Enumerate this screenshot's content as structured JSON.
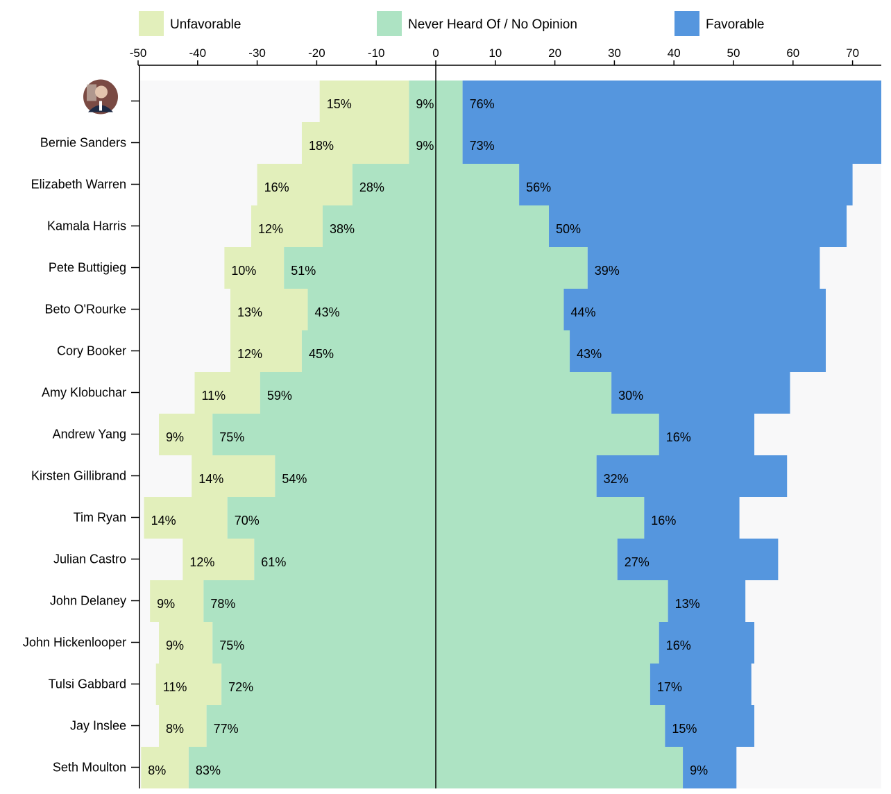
{
  "colors": {
    "unfavorable": "#e2efbb",
    "neutral": "#ade3c3",
    "favorable": "#5596de",
    "panel": "#f8f8f9"
  },
  "legend": [
    {
      "label": "Unfavorable",
      "key": "unfavorable"
    },
    {
      "label": "Never Heard Of / No Opinion",
      "key": "neutral"
    },
    {
      "label": "Favorable",
      "key": "favorable"
    }
  ],
  "chart_data": {
    "type": "bar",
    "orientation": "horizontal-diverging-stacked",
    "x_ticks": [
      -50,
      -40,
      -30,
      -20,
      -10,
      0,
      10,
      20,
      30,
      40,
      50,
      60,
      70
    ],
    "xlim": [
      -50,
      75
    ],
    "rows": [
      {
        "name": "",
        "avatar": true,
        "unfavorable": 15,
        "neutral": 9,
        "favorable": 76
      },
      {
        "name": "Bernie Sanders",
        "unfavorable": 18,
        "neutral": 9,
        "favorable": 73
      },
      {
        "name": "Elizabeth Warren",
        "unfavorable": 16,
        "neutral": 28,
        "favorable": 56
      },
      {
        "name": "Kamala Harris",
        "unfavorable": 12,
        "neutral": 38,
        "favorable": 50
      },
      {
        "name": "Pete Buttigieg",
        "unfavorable": 10,
        "neutral": 51,
        "favorable": 39
      },
      {
        "name": "Beto O'Rourke",
        "unfavorable": 13,
        "neutral": 43,
        "favorable": 44
      },
      {
        "name": "Cory Booker",
        "unfavorable": 12,
        "neutral": 45,
        "favorable": 43
      },
      {
        "name": "Amy Klobuchar",
        "unfavorable": 11,
        "neutral": 59,
        "favorable": 30
      },
      {
        "name": "Andrew Yang",
        "unfavorable": 9,
        "neutral": 75,
        "favorable": 16
      },
      {
        "name": "Kirsten Gillibrand",
        "unfavorable": 14,
        "neutral": 54,
        "favorable": 32
      },
      {
        "name": "Tim Ryan",
        "unfavorable": 14,
        "neutral": 70,
        "favorable": 16
      },
      {
        "name": "Julian Castro",
        "unfavorable": 12,
        "neutral": 61,
        "favorable": 27
      },
      {
        "name": "John Delaney",
        "unfavorable": 9,
        "neutral": 78,
        "favorable": 13
      },
      {
        "name": "John Hickenlooper",
        "unfavorable": 9,
        "neutral": 75,
        "favorable": 16
      },
      {
        "name": "Tulsi Gabbard",
        "unfavorable": 11,
        "neutral": 72,
        "favorable": 17
      },
      {
        "name": "Jay Inslee",
        "unfavorable": 8,
        "neutral": 77,
        "favorable": 15
      },
      {
        "name": "Seth Moulton",
        "unfavorable": 8,
        "neutral": 83,
        "favorable": 9
      }
    ]
  }
}
